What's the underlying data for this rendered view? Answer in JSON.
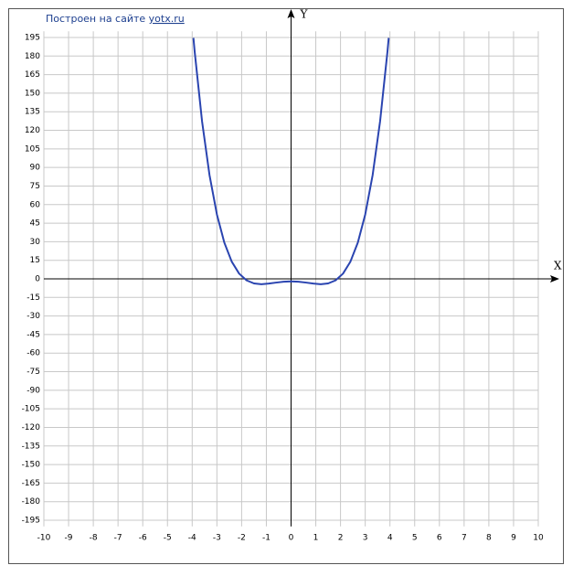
{
  "chart_data": {
    "type": "line",
    "credit_text": "Построен на сайте",
    "credit_link": "yotx.ru",
    "xlabel": "X",
    "ylabel": "Y",
    "xlim": [
      -10,
      10
    ],
    "ylim": [
      -200,
      200
    ],
    "xticks": [
      -10,
      -9,
      -8,
      -7,
      -6,
      -5,
      -4,
      -3,
      -2,
      -1,
      0,
      1,
      2,
      3,
      4,
      5,
      6,
      7,
      8,
      9,
      10
    ],
    "yticks": [
      -195,
      -180,
      -165,
      -150,
      -135,
      -120,
      -105,
      -90,
      -75,
      -60,
      -45,
      -30,
      -15,
      0,
      15,
      30,
      45,
      60,
      75,
      90,
      105,
      120,
      135,
      150,
      165,
      180,
      195
    ],
    "grid": true,
    "x": [
      -3.95,
      -3.9,
      -3.6,
      -3.3,
      -3,
      -2.7,
      -2.4,
      -2.1,
      -1.8,
      -1.5,
      -1.2,
      -0.9,
      -0.6,
      -0.3,
      0,
      0.3,
      0.6,
      0.9,
      1.2,
      1.5,
      1.8,
      2.1,
      2.4,
      2.7,
      3,
      3.3,
      3.6,
      3.9,
      3.95
    ],
    "series": [
      {
        "color": "#2a44b0",
        "values": [
          194.6,
          183.7,
          127.1,
          83.9,
          52,
          29.3,
          13.9,
          4.2,
          -1.2,
          -3.7,
          -4.3,
          -3.8,
          -3,
          -2.3,
          -2,
          -2.3,
          -3,
          -3.8,
          -4.3,
          -3.7,
          -1.2,
          4.2,
          13.9,
          29.3,
          52,
          83.9,
          127.1,
          183.7,
          194.6
        ]
      }
    ]
  }
}
